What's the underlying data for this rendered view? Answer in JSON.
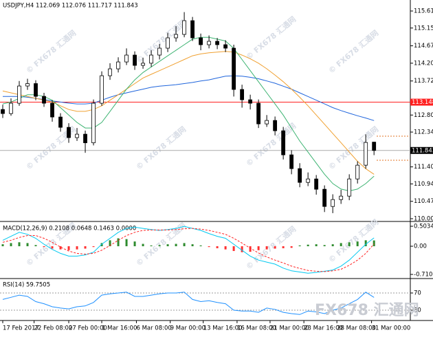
{
  "watermark": "© FX678 汇通网",
  "logo": "FX678 汇通网",
  "chart_data": [
    {
      "type": "candlestick",
      "title": "USDJPY,H4  112.069 112.076 111.717 111.843",
      "open": [
        112.95,
        112.84,
        113.119,
        113.584,
        113.65,
        113.305,
        113.119,
        112.747,
        112.468,
        112.19,
        112.283,
        112.05,
        113.119,
        113.862,
        114.048,
        114.234,
        114.42,
        114.141,
        114.2,
        114.42,
        114.606,
        114.885,
        114.978,
        115.349,
        114.885,
        114.699,
        114.792,
        114.7,
        114.606,
        113.491,
        113.212,
        113.119,
        112.561,
        112.654,
        112.375,
        111.725,
        111.353,
        110.981,
        111.074,
        110.796,
        110.331,
        110.517,
        110.61,
        111.074,
        111.446,
        112.069
      ],
      "high": [
        113.08,
        113.25,
        113.72,
        113.78,
        113.74,
        113.4,
        113.2,
        112.85,
        112.58,
        112.45,
        112.38,
        113.22,
        113.98,
        114.2,
        114.36,
        114.6,
        114.52,
        114.35,
        114.55,
        114.72,
        115.02,
        115.2,
        115.58,
        115.45,
        115.0,
        114.95,
        114.88,
        114.82,
        114.7,
        113.62,
        113.35,
        113.22,
        112.8,
        112.76,
        112.48,
        111.85,
        111.5,
        111.25,
        111.18,
        110.9,
        110.66,
        110.78,
        111.2,
        111.55,
        112.28,
        112.076
      ],
      "low": [
        112.72,
        112.78,
        113.05,
        113.48,
        113.2,
        113.02,
        112.62,
        112.35,
        112.05,
        112.1,
        111.78,
        111.98,
        113.05,
        113.75,
        113.95,
        114.15,
        114.02,
        114.05,
        114.1,
        114.3,
        114.5,
        114.78,
        114.9,
        114.8,
        114.55,
        114.6,
        114.58,
        114.5,
        113.3,
        113.0,
        112.95,
        112.45,
        112.48,
        112.25,
        111.6,
        111.2,
        110.85,
        110.88,
        110.65,
        110.18,
        110.15,
        110.4,
        110.5,
        110.95,
        111.35,
        111.717
      ],
      "close": [
        112.84,
        113.119,
        113.584,
        113.65,
        113.305,
        113.119,
        112.747,
        112.468,
        112.19,
        112.283,
        112.05,
        113.119,
        113.862,
        114.048,
        114.234,
        114.42,
        114.141,
        114.2,
        114.42,
        114.606,
        114.885,
        114.978,
        115.349,
        114.885,
        114.699,
        114.792,
        114.7,
        114.606,
        113.491,
        113.212,
        113.119,
        112.561,
        112.654,
        112.375,
        111.725,
        111.353,
        110.981,
        111.074,
        110.796,
        110.331,
        110.517,
        110.61,
        111.074,
        111.446,
        112.06,
        111.843
      ],
      "up_color": "#ffffff",
      "down_color": "#000000",
      "series": [
        {
          "color": "#1e64dc",
          "values": [
            113.3,
            113.3,
            113.3,
            113.28,
            113.25,
            113.22,
            113.18,
            113.15,
            113.12,
            113.1,
            113.1,
            113.12,
            113.2,
            113.28,
            113.35,
            113.4,
            113.45,
            113.5,
            113.55,
            113.58,
            113.6,
            113.62,
            113.65,
            113.68,
            113.72,
            113.75,
            113.8,
            113.85,
            113.86,
            113.85,
            113.82,
            113.78,
            113.72,
            113.66,
            113.58,
            113.5,
            113.4,
            113.3,
            113.2,
            113.1,
            113.0,
            112.92,
            112.85,
            112.78,
            112.72,
            112.65
          ]
        },
        {
          "color": "#f0a030",
          "values": [
            113.45,
            113.4,
            113.35,
            113.3,
            113.25,
            113.2,
            113.15,
            113.05,
            112.95,
            112.9,
            112.9,
            112.95,
            113.05,
            113.2,
            113.35,
            113.5,
            113.65,
            113.8,
            113.9,
            114.0,
            114.1,
            114.2,
            114.3,
            114.4,
            114.45,
            114.48,
            114.5,
            114.52,
            114.5,
            114.42,
            114.32,
            114.2,
            114.05,
            113.88,
            113.7,
            113.5,
            113.28,
            113.05,
            112.8,
            112.55,
            112.3,
            112.05,
            111.8,
            111.55,
            111.35,
            111.2
          ]
        },
        {
          "color": "#3cb371",
          "values": [
            113.1,
            113.15,
            113.25,
            113.35,
            113.35,
            113.3,
            113.2,
            113.0,
            112.8,
            112.6,
            112.45,
            112.45,
            112.6,
            112.9,
            113.2,
            113.5,
            113.75,
            113.95,
            114.1,
            114.25,
            114.4,
            114.55,
            114.7,
            114.85,
            114.9,
            114.9,
            114.85,
            114.8,
            114.6,
            114.3,
            114.0,
            113.7,
            113.4,
            113.1,
            112.8,
            112.45,
            112.1,
            111.8,
            111.5,
            111.2,
            110.95,
            110.8,
            110.75,
            110.8,
            110.95,
            111.15
          ]
        }
      ],
      "hlines": [
        {
          "value": 113.148,
          "color": "#ff2020"
        },
        {
          "value": 111.843,
          "color": "#000000"
        }
      ],
      "ylim": [
        109.963,
        115.907
      ],
      "yticks": [
        {
          "value": 115.61,
          "label": "115.610"
        },
        {
          "value": 115.15,
          "label": "115.150"
        },
        {
          "value": 114.67,
          "label": "114.670"
        },
        {
          "value": 114.2,
          "label": "114.200"
        },
        {
          "value": 113.72,
          "label": "113.720"
        },
        {
          "value": 112.8,
          "label": "112.800"
        },
        {
          "value": 112.34,
          "label": "112.340"
        },
        {
          "value": 111.4,
          "label": "111.400"
        },
        {
          "value": 110.94,
          "label": "110.940"
        },
        {
          "value": 110.47,
          "label": "110.470"
        },
        {
          "value": 110,
          "label": "110.000"
        }
      ]
    },
    {
      "type": "macd",
      "title": "MACD(12,26,9) 0.2108 0.0648 0.1463 0.0000",
      "histogram": [
        0.05,
        0.08,
        0.1,
        0.08,
        0.03,
        -0.02,
        -0.06,
        -0.08,
        -0.1,
        -0.08,
        -0.06,
        -0.02,
        0.08,
        0.15,
        0.2,
        0.18,
        0.12,
        0.06,
        0.02,
        0.03,
        0.05,
        0.06,
        0.08,
        0.05,
        0.02,
        -0.02,
        -0.05,
        -0.08,
        -0.12,
        -0.15,
        -0.14,
        -0.1,
        -0.08,
        -0.06,
        -0.05,
        -0.04,
        0.02,
        0.04,
        0.05,
        0.03,
        0.05,
        0.08,
        0.1,
        0.12,
        0.15,
        0.1463
      ],
      "up_color": "#2e8b2e",
      "down_color": "#ff3030",
      "series": [
        {
          "color": "#00c8f0",
          "values": [
            0.15,
            0.25,
            0.35,
            0.3,
            0.2,
            0.05,
            -0.08,
            -0.18,
            -0.25,
            -0.25,
            -0.22,
            -0.15,
            0.05,
            0.2,
            0.35,
            0.45,
            0.48,
            0.45,
            0.42,
            0.4,
            0.42,
            0.45,
            0.5,
            0.45,
            0.4,
            0.32,
            0.25,
            0.2,
            0.05,
            -0.1,
            -0.25,
            -0.35,
            -0.4,
            -0.45,
            -0.55,
            -0.62,
            -0.65,
            -0.68,
            -0.66,
            -0.63,
            -0.6,
            -0.5,
            -0.35,
            -0.15,
            0.05,
            0.21
          ]
        },
        {
          "color": "#ff2020",
          "dashed": true,
          "values": [
            0.1,
            0.15,
            0.22,
            0.27,
            0.27,
            0.2,
            0.1,
            -0.02,
            -0.12,
            -0.18,
            -0.2,
            -0.18,
            -0.1,
            0.02,
            0.15,
            0.27,
            0.35,
            0.4,
            0.41,
            0.41,
            0.41,
            0.42,
            0.44,
            0.45,
            0.43,
            0.4,
            0.35,
            0.3,
            0.2,
            0.08,
            -0.05,
            -0.17,
            -0.27,
            -0.35,
            -0.42,
            -0.5,
            -0.56,
            -0.61,
            -0.63,
            -0.64,
            -0.62,
            -0.58,
            -0.48,
            -0.35,
            -0.18,
            0.06
          ]
        }
      ],
      "ylim": [
        -0.797,
        0.59
      ],
      "yticks": [
        0.5034,
        {
          "value": 0,
          "label": "0.00"
        },
        -0.7103
      ]
    },
    {
      "type": "rsi",
      "title": "RSI(14) 59.7505",
      "series": [
        {
          "color": "#1e90ff",
          "values": [
            55,
            60,
            65,
            62,
            50,
            45,
            38,
            35,
            33,
            38,
            40,
            48,
            65,
            68,
            70,
            72,
            62,
            62,
            65,
            68,
            70,
            70,
            72,
            55,
            50,
            52,
            48,
            45,
            30,
            28,
            28,
            25,
            35,
            32,
            25,
            22,
            20,
            28,
            26,
            22,
            30,
            35,
            45,
            55,
            72,
            59.75
          ]
        }
      ],
      "ylim": [
        7.6,
        102
      ],
      "yticks": [
        70,
        30
      ],
      "xlim": [
        -0.333,
        49.4
      ],
      "xticks": [
        {
          "value": 0,
          "label": "17 Feb 2017"
        },
        {
          "value": 3.8,
          "label": "22 Feb 08:00"
        },
        {
          "value": 8,
          "label": "27 Feb 00:00"
        },
        {
          "value": 12,
          "label": "1 Mar 16:00"
        },
        {
          "value": 16.2,
          "label": "6 Mar 08:00"
        },
        {
          "value": 20.3,
          "label": "9 Mar 00:00"
        },
        {
          "value": 24.3,
          "label": "13 Mar 16:00"
        },
        {
          "value": 28.4,
          "label": "16 Mar 08:00"
        },
        {
          "value": 32.4,
          "label": "21 Mar 00:00"
        },
        {
          "value": 36.5,
          "label": "23 Mar 16:00"
        },
        {
          "value": 40.5,
          "label": "28 Mar 08:00"
        },
        {
          "value": 44.7,
          "label": "31 Mar 00:00"
        }
      ]
    }
  ]
}
